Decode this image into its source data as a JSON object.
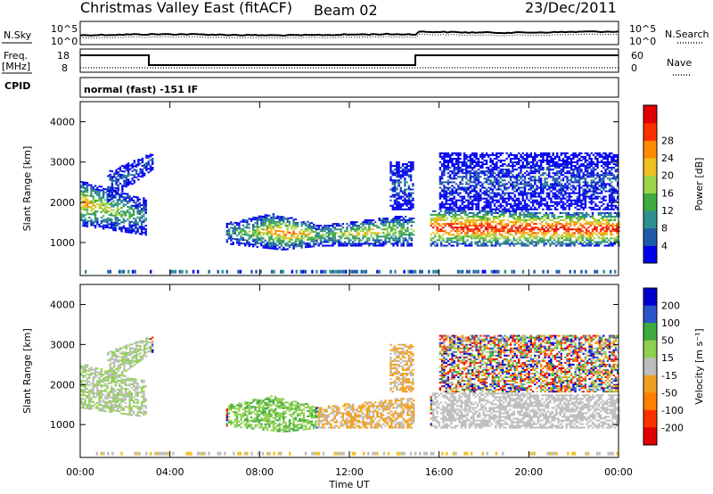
{
  "header": {
    "site": "Christmas Valley East (fitACF)",
    "beam": "Beam 02",
    "date": "23/Dec/2011"
  },
  "strip_labels": {
    "nsky": "N.Sky",
    "nsearch": "N.Search",
    "freq": "Freq.",
    "mhz": "[MHz]",
    "nave": "Nave",
    "cpid": "CPID",
    "cpid_value": "normal (fast) -151 IF"
  },
  "strip_ticks": {
    "noise_left": [
      "10^5",
      "10^0"
    ],
    "noise_right": [
      "10^5",
      "10^0"
    ],
    "freq_left": [
      "18",
      "8"
    ],
    "freq_right": [
      "60",
      "0"
    ]
  },
  "chart_data": [
    {
      "type": "heatmap",
      "name": "power",
      "ylabel": "Slant Range [km]",
      "xlabel": "",
      "x_ticks": [
        "00:00",
        "04:00",
        "08:00",
        "12:00",
        "16:00",
        "20:00",
        "00:00"
      ],
      "y_ticks": [
        1000,
        2000,
        3000,
        4000
      ],
      "ylim": [
        180,
        4500
      ],
      "colorbar": {
        "label": "Power [dB]",
        "ticks": [
          4,
          8,
          12,
          16,
          20,
          24,
          28
        ],
        "colors": [
          "#0000ee",
          "#1e5aa8",
          "#2f8f8f",
          "#3faa3f",
          "#9fd54a",
          "#f0c020",
          "#ff8c00",
          "#ff3000",
          "#e00000"
        ]
      }
    },
    {
      "type": "heatmap",
      "name": "velocity",
      "ylabel": "Slant Range [km]",
      "xlabel": "Time UT",
      "x_ticks": [
        "00:00",
        "04:00",
        "08:00",
        "12:00",
        "16:00",
        "20:00",
        "00:00"
      ],
      "y_ticks": [
        1000,
        2000,
        3000,
        4000
      ],
      "ylim": [
        180,
        4500
      ],
      "colorbar": {
        "label": "Velocity [m s⁻¹]",
        "ticks": [
          200,
          100,
          50,
          15,
          -15,
          -50,
          -100,
          -200
        ],
        "colors": [
          "#0000cc",
          "#2b55c8",
          "#3faa3f",
          "#8fd04f",
          "#bdbdbd",
          "#f0a020",
          "#ff8000",
          "#ff3000",
          "#e00000"
        ]
      }
    }
  ],
  "colors": {
    "gray": "#bdbdbd",
    "frame": "#000000"
  }
}
